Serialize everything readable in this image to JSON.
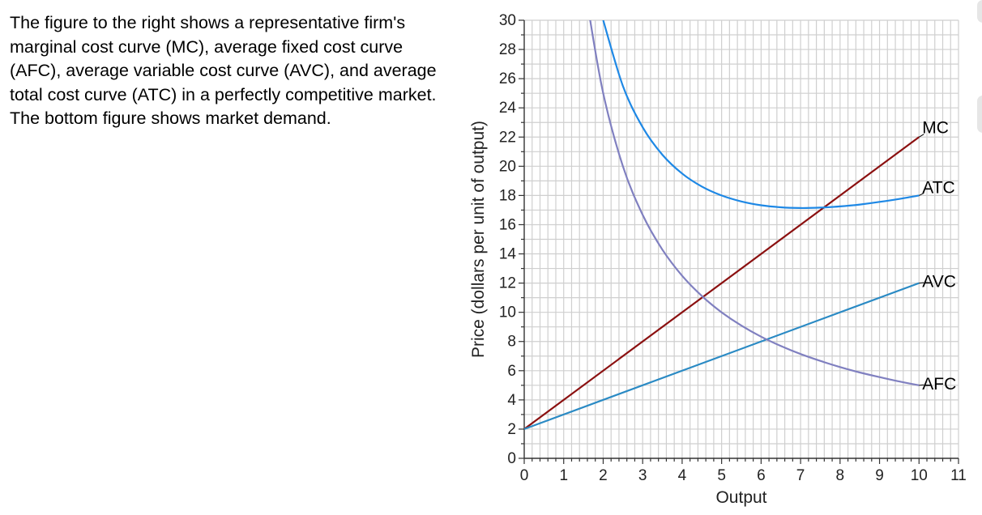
{
  "question": {
    "text": "The figure to the right shows a representative firm's marginal cost curve (MC), average fixed cost curve (AFC), average variable cost curve (AVC), and average total cost curve (ATC) in a perfectly competitive market. The bottom figure shows market demand."
  },
  "chart_data": {
    "type": "line",
    "title": "",
    "xlabel": "Output",
    "ylabel": "Price (dollars per unit of output)",
    "xlim": [
      0,
      11
    ],
    "ylim": [
      0,
      30
    ],
    "x_ticks": [
      "0",
      "1",
      "2",
      "3",
      "4",
      "5",
      "6",
      "7",
      "8",
      "9",
      "10",
      "11"
    ],
    "y_ticks": [
      "0",
      "2",
      "4",
      "6",
      "8",
      "10",
      "12",
      "14",
      "16",
      "18",
      "20",
      "22",
      "24",
      "26",
      "28",
      "30"
    ],
    "grid": true,
    "series": [
      {
        "name": "MC",
        "color": "#8b1010",
        "x": [
          0,
          10
        ],
        "y": [
          2,
          22
        ]
      },
      {
        "name": "ATC",
        "color": "#1e88e5",
        "x": [
          2,
          2.5,
          3,
          3.5,
          4,
          4.5,
          5,
          5.5,
          6,
          6.5,
          7,
          7.5,
          8,
          8.5,
          9,
          9.5,
          10
        ],
        "y": [
          30,
          25.5,
          22.67,
          20.79,
          19.5,
          18.61,
          18,
          17.59,
          17.33,
          17.19,
          17.14,
          17.17,
          17.25,
          17.38,
          17.56,
          17.76,
          18
        ]
      },
      {
        "name": "AVC",
        "color": "#2a8ac4",
        "x": [
          0,
          10
        ],
        "y": [
          2,
          12
        ]
      },
      {
        "name": "AFC",
        "color": "#8080c0",
        "x": [
          1.63,
          2,
          2.5,
          3,
          3.5,
          4,
          4.5,
          5,
          5.5,
          6,
          6.5,
          7,
          7.5,
          8,
          8.5,
          9,
          9.5,
          10
        ],
        "y": [
          30.67,
          25,
          20,
          16.67,
          14.29,
          12.5,
          11.11,
          10,
          9.09,
          8.33,
          7.69,
          7.14,
          6.67,
          6.25,
          5.88,
          5.56,
          5.26,
          5
        ]
      }
    ]
  }
}
